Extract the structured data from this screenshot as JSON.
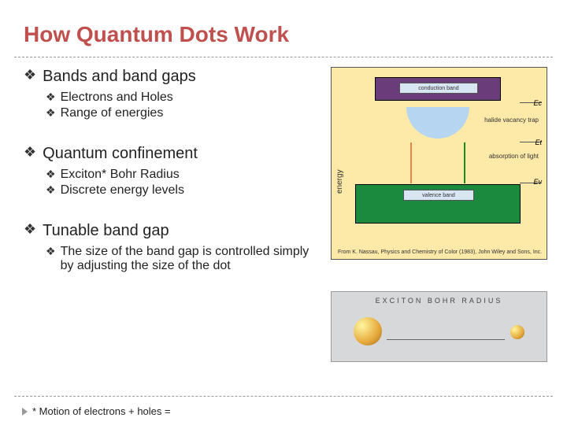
{
  "title": "How Quantum Dots Work",
  "title_color": "#c0504d",
  "bullets": [
    {
      "text": "Bands and band gaps",
      "sub": [
        "Electrons and Holes",
        "Range of energies"
      ]
    },
    {
      "text": "Quantum confinement",
      "sub": [
        "Exciton* Bohr Radius",
        "Discrete energy levels"
      ]
    },
    {
      "text": "Tunable band gap",
      "sub": [
        "The size of the band gap is controlled simply by adjusting the size of the dot"
      ]
    }
  ],
  "footnote": "* Motion of electrons + holes =",
  "diagram1": {
    "background": "#fde9a8",
    "conduction_label": "conduction band",
    "conduction_color": "#6a3d7a",
    "trap_color": "#b5d5f0",
    "valence_label": "valence band",
    "valence_color": "#1b8a3e",
    "ylabel": "energy",
    "annot_trap": "halide vacancy trap",
    "annot_abs": "absorption of light",
    "arrow_up_color": "#e8864a",
    "arrow_dn_color": "#168a1b",
    "energy_labels": {
      "ec": "Ec",
      "et": "Et",
      "ev": "Ev"
    },
    "caption": "From K. Nassau, Physics and Chemistry of Color (1983), John Wiley and Sons, Inc."
  },
  "diagram2": {
    "title": "EXCITON BOHR RADIUS",
    "background": "#d6d8da",
    "dot_gradient": [
      "#fff6a0",
      "#e6a93b",
      "#a06a1f"
    ]
  },
  "fonts": {
    "title_size": 28,
    "bullet_size": 20,
    "sub_size": 16,
    "footnote_size": 13
  }
}
